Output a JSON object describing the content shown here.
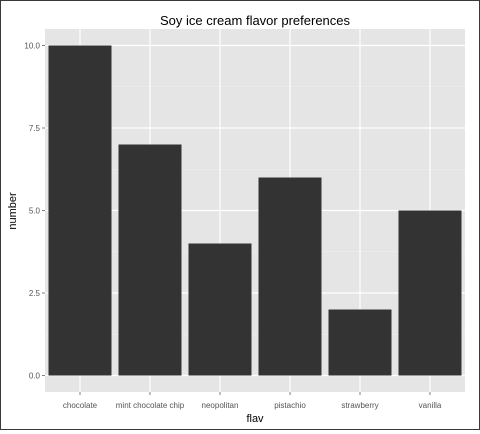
{
  "colors": {
    "panel_bg": "#e5e5e5",
    "grid_major": "#ffffff",
    "grid_minor": "#f0f0f0",
    "bar_fill": "#333333",
    "tick_text": "#555555"
  },
  "chart_data": {
    "type": "bar",
    "title": "Soy ice cream flavor preferences",
    "xlabel": "flav",
    "ylabel": "number",
    "categories": [
      "chocolate",
      "mint chocolate chip",
      "neopolitan",
      "pistachio",
      "strawberry",
      "vanilla"
    ],
    "values": [
      10,
      7,
      4,
      6,
      2,
      5
    ],
    "ylim": [
      -0.5,
      10.5
    ],
    "yticks": [
      0,
      2.5,
      5,
      7.5,
      10
    ],
    "ytick_labels": [
      "0.0",
      "2.5",
      "5.0",
      "7.5",
      "10.0"
    ],
    "grid": true,
    "legend": "none"
  }
}
